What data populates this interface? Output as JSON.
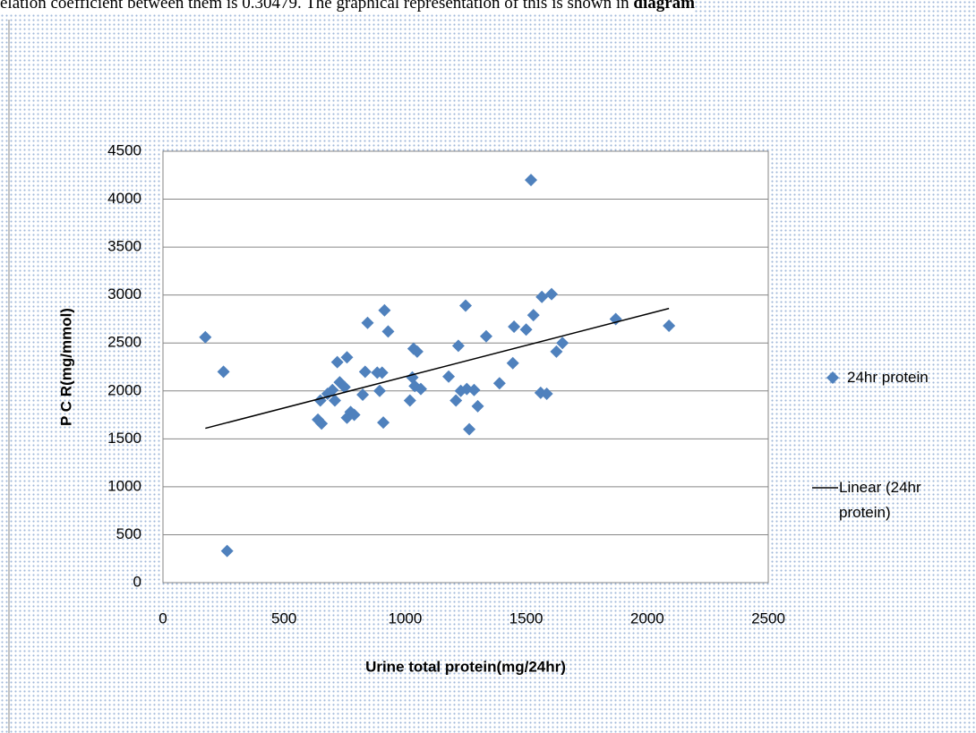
{
  "document": {
    "text": "elation coefficient between them is 0.30479. The graphical representation of this is shown in",
    "bold": "diagram"
  },
  "chart_data": {
    "type": "scatter",
    "xlabel": "Urine total protein(mg/24hr)",
    "ylabel": "P C R(mg/mmol)",
    "xlim": [
      0,
      2500
    ],
    "xticks": [
      0,
      500,
      1000,
      1500,
      2000,
      2500
    ],
    "ylim": [
      0,
      4500
    ],
    "yticks": [
      0,
      500,
      1000,
      1500,
      2000,
      2500,
      3000,
      3500,
      4000,
      4500
    ],
    "grid": true,
    "legend": "right",
    "series": [
      {
        "name": "24hr protein",
        "color": "#4f81bd",
        "x": [
          175,
          250,
          265,
          640,
          655,
          650,
          680,
          700,
          710,
          720,
          730,
          750,
          760,
          760,
          775,
          790,
          825,
          835,
          845,
          885,
          895,
          905,
          910,
          915,
          930,
          1020,
          1030,
          1035,
          1050,
          1040,
          1065,
          1180,
          1210,
          1220,
          1230,
          1250,
          1255,
          1265,
          1285,
          1300,
          1335,
          1390,
          1445,
          1450,
          1500,
          1520,
          1530,
          1560,
          1565,
          1585,
          1605,
          1625,
          1650,
          1870,
          2090
        ],
        "values": [
          2560,
          2200,
          330,
          1700,
          1660,
          1900,
          1970,
          2010,
          1900,
          2300,
          2090,
          2040,
          2350,
          1720,
          1780,
          1750,
          1960,
          2200,
          2710,
          2190,
          2000,
          2190,
          1670,
          2840,
          2620,
          1900,
          2140,
          2440,
          2410,
          2050,
          2020,
          2150,
          1900,
          2470,
          2000,
          2890,
          2020,
          1600,
          2010,
          1840,
          2570,
          2080,
          2290,
          2670,
          2640,
          4200,
          2790,
          1980,
          2980,
          1970,
          3010,
          2410,
          2500,
          2750,
          2680
        ]
      }
    ],
    "trendline": {
      "name": "Linear (24hr protein)",
      "color": "#000000",
      "x": [
        175,
        2090
      ],
      "y": [
        1610,
        2860
      ]
    }
  }
}
